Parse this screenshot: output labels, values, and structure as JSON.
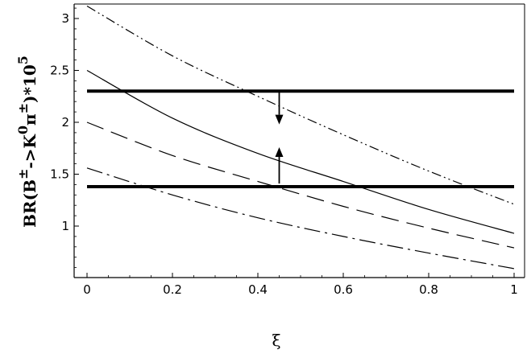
{
  "chart_data": {
    "type": "line",
    "xlabel": "ξ",
    "ylabel": "BR(B±->K0π±)*10^5",
    "ylabel_parts": {
      "base": "BR(B",
      "sup1": "±",
      "mid1": "->K",
      "sup2": "0",
      "mid2": "π",
      "sup3": "±",
      "mid3": ")*10",
      "sup4": "5"
    },
    "xlim": [
      0,
      1
    ],
    "ylim": [
      0.55,
      3.25
    ],
    "xticks": [
      {
        "value": 0,
        "label": "0"
      },
      {
        "value": 0.2,
        "label": "0.2"
      },
      {
        "value": 0.4,
        "label": "0.4"
      },
      {
        "value": 0.6,
        "label": "0.6"
      },
      {
        "value": 0.8,
        "label": "0.8"
      },
      {
        "value": 1,
        "label": "1"
      }
    ],
    "yticks": [
      {
        "value": 1,
        "label": "1"
      },
      {
        "value": 1.5,
        "label": "1.5"
      },
      {
        "value": 2,
        "label": "2"
      },
      {
        "value": 2.5,
        "label": "2.5"
      },
      {
        "value": 3,
        "label": "3"
      }
    ],
    "grid": false,
    "series": [
      {
        "style": "solid",
        "x": [
          0,
          0.2,
          0.4,
          0.6,
          0.8,
          1
        ],
        "y": [
          2.5,
          2.04,
          1.7,
          1.43,
          1.16,
          0.93
        ]
      },
      {
        "style": "dash-dot-dot",
        "x": [
          0,
          0.2,
          0.4,
          0.6,
          0.8,
          1
        ],
        "y": [
          3.12,
          2.64,
          2.25,
          1.88,
          1.53,
          1.21
        ]
      },
      {
        "style": "long-dash",
        "x": [
          0,
          0.2,
          0.4,
          0.6,
          0.8,
          1
        ],
        "y": [
          2.0,
          1.68,
          1.43,
          1.19,
          0.98,
          0.79
        ]
      },
      {
        "style": "dash-dot",
        "x": [
          0,
          0.2,
          0.4,
          0.6,
          0.8,
          1
        ],
        "y": [
          1.56,
          1.3,
          1.08,
          0.9,
          0.74,
          0.59
        ]
      }
    ],
    "horizontal_bands": [
      {
        "y": 2.3,
        "x": [
          0,
          1
        ]
      },
      {
        "y": 1.38,
        "x": [
          0,
          1
        ]
      }
    ],
    "annotations": [
      {
        "type": "arrow",
        "x": 0.45,
        "from": 2.3,
        "to": 1.98
      },
      {
        "type": "arrow",
        "x": 0.45,
        "from": 1.41,
        "to": 1.76
      }
    ]
  }
}
